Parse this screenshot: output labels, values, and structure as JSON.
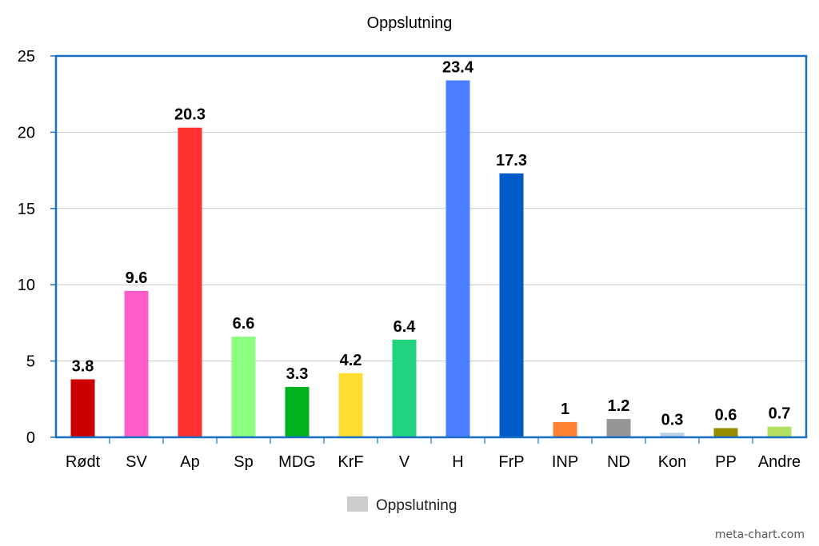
{
  "watermark": "meta-chart.com",
  "chart_data": {
    "type": "bar",
    "title": "Oppslutning",
    "xlabel": "",
    "ylabel": "",
    "ylim": [
      0,
      25
    ],
    "yticks": [
      0,
      5,
      10,
      15,
      20,
      25
    ],
    "grid": true,
    "legend_position": "bottom",
    "categories": [
      "Rødt",
      "SV",
      "Ap",
      "Sp",
      "MDG",
      "KrF",
      "V",
      "H",
      "FrP",
      "INP",
      "ND",
      "Kon",
      "PP",
      "Andre"
    ],
    "series": [
      {
        "name": "Oppslutning",
        "legend_color": "#cccccc",
        "values": [
          3.8,
          9.6,
          20.3,
          6.6,
          3.3,
          4.2,
          6.4,
          23.4,
          17.3,
          1,
          1.2,
          0.3,
          0.6,
          0.7
        ],
        "labels": [
          "3.8",
          "9.6",
          "20.3",
          "6.6",
          "3.3",
          "4.2",
          "6.4",
          "23.4",
          "17.3",
          "1",
          "1.2",
          "0.3",
          "0.6",
          "0.7"
        ],
        "colors": [
          "#cc0000",
          "#ff5ec8",
          "#ff3030",
          "#8cff80",
          "#00b21e",
          "#ffdd33",
          "#22d47f",
          "#4a7fff",
          "#005ac8",
          "#ff8030",
          "#969696",
          "#bcd0e8",
          "#968c00",
          "#b4e060"
        ]
      }
    ]
  }
}
